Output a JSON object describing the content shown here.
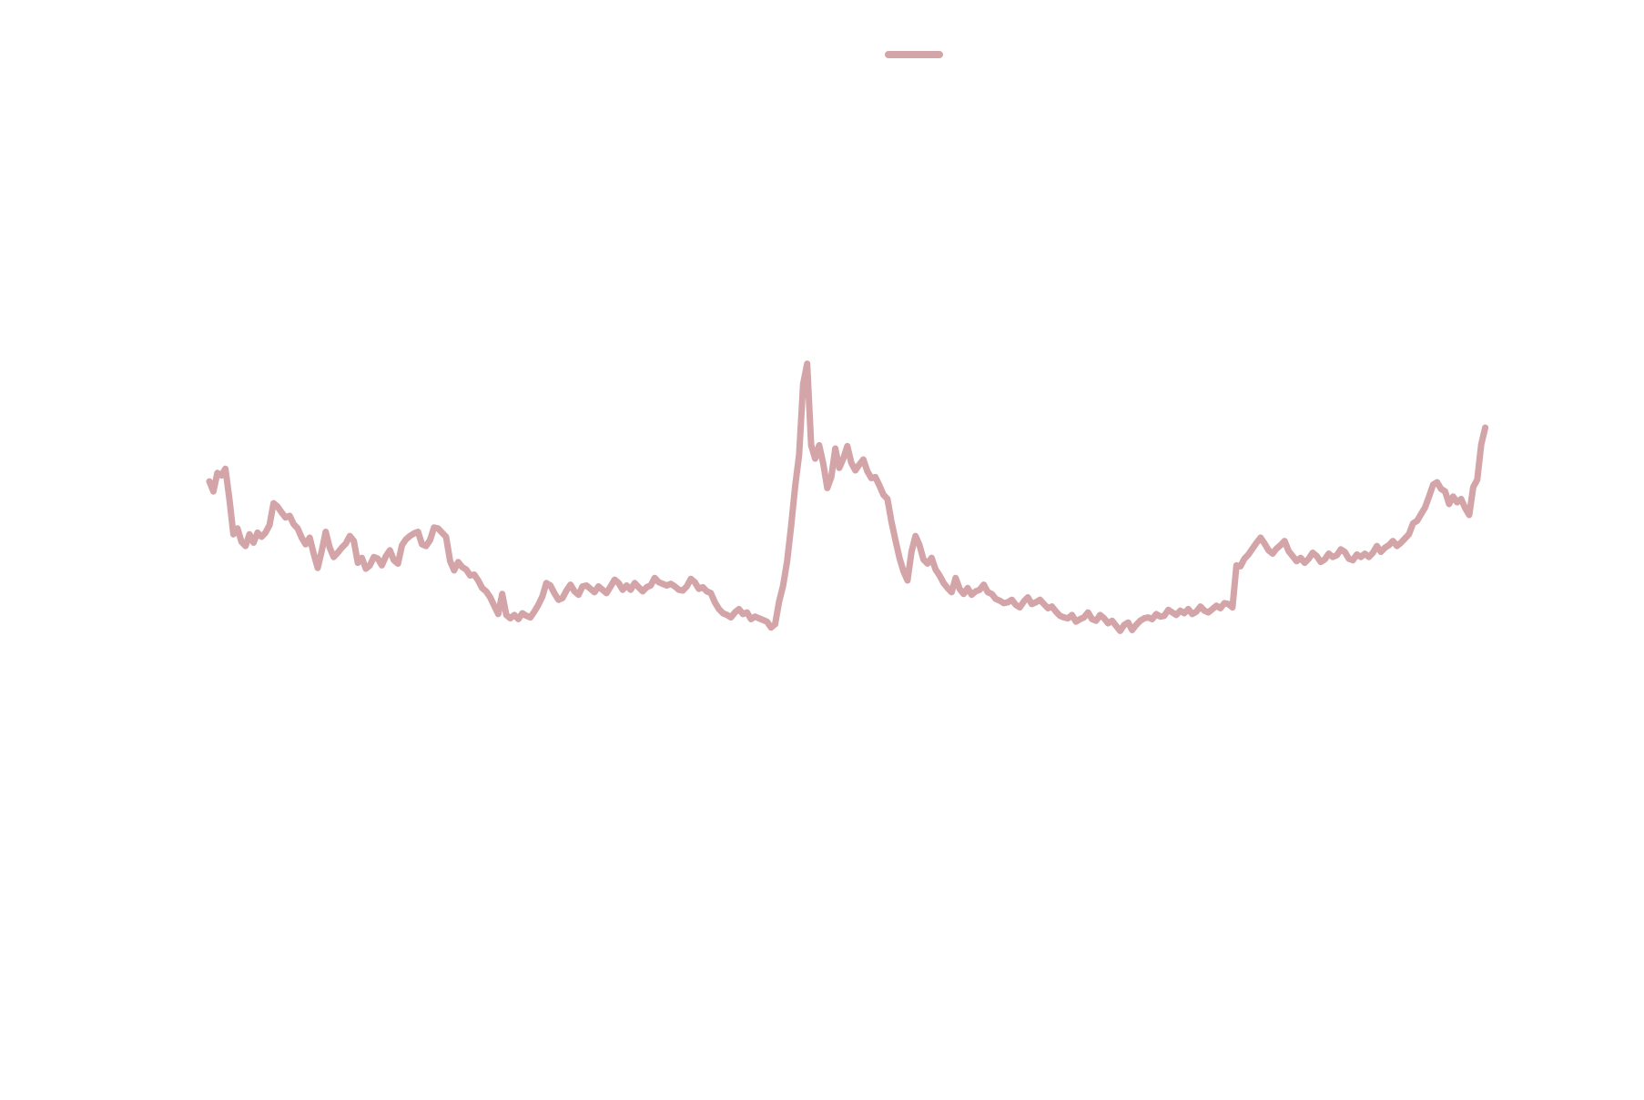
{
  "chart_data": {
    "type": "line",
    "title": "",
    "xlabel": "",
    "ylabel": "",
    "grid": false,
    "legend_position": "top-center",
    "line_color": "#d4a5a8",
    "xlim": [
      0,
      319
    ],
    "ylim": [
      -6.5,
      5.5
    ],
    "series": [
      {
        "name": "",
        "values": [
          0.42,
          0.3,
          0.52,
          0.49,
          0.57,
          0.21,
          -0.21,
          -0.14,
          -0.3,
          -0.35,
          -0.21,
          -0.31,
          -0.19,
          -0.24,
          -0.19,
          -0.1,
          0.16,
          0.12,
          0.05,
          -0.01,
          0.01,
          -0.09,
          -0.14,
          -0.25,
          -0.33,
          -0.25,
          -0.44,
          -0.61,
          -0.41,
          -0.18,
          -0.37,
          -0.48,
          -0.43,
          -0.37,
          -0.32,
          -0.23,
          -0.29,
          -0.55,
          -0.49,
          -0.62,
          -0.58,
          -0.48,
          -0.5,
          -0.58,
          -0.47,
          -0.4,
          -0.52,
          -0.56,
          -0.34,
          -0.27,
          -0.23,
          -0.2,
          -0.18,
          -0.33,
          -0.35,
          -0.28,
          -0.13,
          -0.14,
          -0.19,
          -0.24,
          -0.53,
          -0.64,
          -0.54,
          -0.6,
          -0.63,
          -0.7,
          -0.69,
          -0.76,
          -0.85,
          -0.89,
          -0.96,
          -1.06,
          -1.16,
          -0.92,
          -1.17,
          -1.21,
          -1.17,
          -1.22,
          -1.15,
          -1.18,
          -1.2,
          -1.13,
          -1.05,
          -0.95,
          -0.79,
          -0.82,
          -0.91,
          -0.99,
          -0.97,
          -0.88,
          -0.81,
          -0.89,
          -0.93,
          -0.83,
          -0.82,
          -0.86,
          -0.9,
          -0.83,
          -0.87,
          -0.91,
          -0.83,
          -0.75,
          -0.79,
          -0.87,
          -0.82,
          -0.87,
          -0.79,
          -0.84,
          -0.89,
          -0.84,
          -0.82,
          -0.73,
          -0.78,
          -0.8,
          -0.82,
          -0.8,
          -0.83,
          -0.87,
          -0.88,
          -0.83,
          -0.74,
          -0.78,
          -0.86,
          -0.84,
          -0.89,
          -0.91,
          -1.02,
          -1.1,
          -1.15,
          -1.17,
          -1.2,
          -1.14,
          -1.1,
          -1.16,
          -1.14,
          -1.22,
          -1.19,
          -1.21,
          -1.23,
          -1.25,
          -1.32,
          -1.28,
          -1.01,
          -0.82,
          -0.53,
          -0.11,
          0.36,
          0.74,
          1.58,
          1.82,
          0.85,
          0.69,
          0.85,
          0.63,
          0.34,
          0.47,
          0.81,
          0.58,
          0.69,
          0.84,
          0.64,
          0.55,
          0.62,
          0.68,
          0.54,
          0.46,
          0.47,
          0.37,
          0.26,
          0.21,
          -0.06,
          -0.28,
          -0.49,
          -0.65,
          -0.76,
          -0.42,
          -0.23,
          -0.34,
          -0.51,
          -0.56,
          -0.49,
          -0.63,
          -0.7,
          -0.79,
          -0.85,
          -0.9,
          -0.73,
          -0.86,
          -0.92,
          -0.85,
          -0.93,
          -0.89,
          -0.87,
          -0.81,
          -0.9,
          -0.92,
          -0.98,
          -1.0,
          -1.03,
          -1.02,
          -0.99,
          -1.05,
          -1.08,
          -1.01,
          -0.96,
          -1.04,
          -1.02,
          -0.99,
          -1.04,
          -1.09,
          -1.07,
          -1.13,
          -1.18,
          -1.2,
          -1.21,
          -1.17,
          -1.25,
          -1.22,
          -1.2,
          -1.14,
          -1.22,
          -1.24,
          -1.17,
          -1.21,
          -1.27,
          -1.24,
          -1.3,
          -1.36,
          -1.29,
          -1.26,
          -1.35,
          -1.29,
          -1.24,
          -1.21,
          -1.2,
          -1.22,
          -1.16,
          -1.19,
          -1.18,
          -1.11,
          -1.14,
          -1.17,
          -1.12,
          -1.15,
          -1.1,
          -1.16,
          -1.13,
          -1.07,
          -1.12,
          -1.14,
          -1.1,
          -1.06,
          -1.09,
          -1.03,
          -1.04,
          -1.08,
          -0.58,
          -0.59,
          -0.5,
          -0.45,
          -0.38,
          -0.31,
          -0.25,
          -0.32,
          -0.4,
          -0.44,
          -0.38,
          -0.34,
          -0.29,
          -0.41,
          -0.47,
          -0.53,
          -0.49,
          -0.55,
          -0.5,
          -0.43,
          -0.47,
          -0.54,
          -0.51,
          -0.44,
          -0.48,
          -0.46,
          -0.39,
          -0.42,
          -0.5,
          -0.52,
          -0.45,
          -0.48,
          -0.44,
          -0.48,
          -0.43,
          -0.35,
          -0.42,
          -0.37,
          -0.34,
          -0.29,
          -0.35,
          -0.31,
          -0.26,
          -0.21,
          -0.08,
          -0.05,
          0.03,
          0.11,
          0.24,
          0.38,
          0.41,
          0.33,
          0.3,
          0.15,
          0.24,
          0.17,
          0.21,
          0.1,
          0.02,
          0.35,
          0.44,
          0.86,
          1.06
        ]
      }
    ]
  }
}
